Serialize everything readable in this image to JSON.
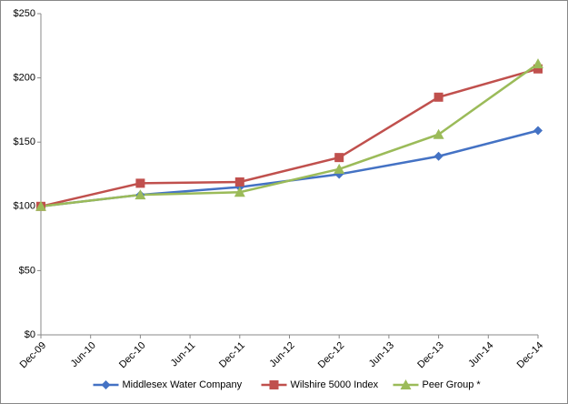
{
  "chart_data": {
    "type": "line",
    "categories": [
      "Dec-09",
      "Dec-10",
      "Dec-11",
      "Dec-12",
      "Dec-13",
      "Dec-14"
    ],
    "between_labels": [
      "Jun-10",
      "Jun-11",
      "Jun-12",
      "Jun-13",
      "Jun-14"
    ],
    "series": [
      {
        "name": "Middlesex Water Company",
        "color": "#4472c4",
        "marker": "diamond",
        "values": [
          100,
          109,
          115,
          125,
          139,
          159
        ]
      },
      {
        "name": "Wilshire 5000 Index",
        "color": "#c0504d",
        "marker": "square",
        "values": [
          100,
          118,
          119,
          138,
          185,
          207
        ]
      },
      {
        "name": "Peer Group *",
        "color": "#9bbb59",
        "marker": "triangle",
        "values": [
          100,
          109,
          111,
          129,
          156,
          211
        ]
      }
    ],
    "ylim": [
      0,
      250
    ],
    "yticks": [
      {
        "value": 0,
        "label": "$0"
      },
      {
        "value": 50,
        "label": "$50"
      },
      {
        "value": 100,
        "label": "$100"
      },
      {
        "value": 150,
        "label": "$150"
      },
      {
        "value": 200,
        "label": "$200"
      },
      {
        "value": 250,
        "label": "$250"
      }
    ],
    "grid": false,
    "legend": "bottom"
  }
}
